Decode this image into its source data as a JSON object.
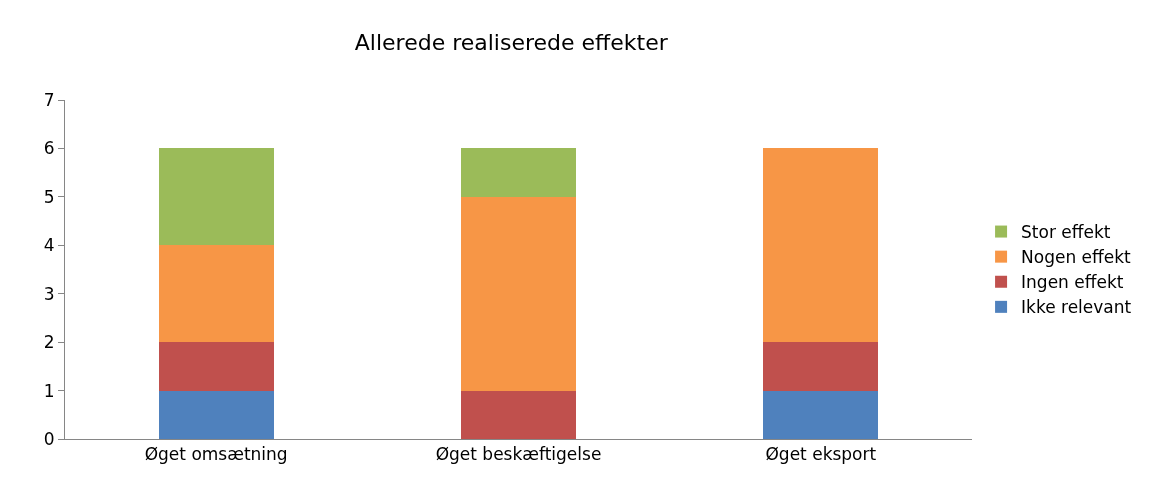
{
  "chart_data": {
    "type": "bar",
    "title": "Allerede realiserede effekter",
    "stacked": true,
    "categories": [
      "Øget omsætning",
      "Øget beskæftigelse",
      "Øget eksport"
    ],
    "series": [
      {
        "name": "Ikke relevant",
        "color": "#4f81bd",
        "values": [
          1,
          0,
          1
        ]
      },
      {
        "name": "Ingen effekt",
        "color": "#c0504d",
        "values": [
          1,
          1,
          1
        ]
      },
      {
        "name": "Nogen effekt",
        "color": "#f79646",
        "values": [
          2,
          4,
          4
        ]
      },
      {
        "name": "Stor effekt",
        "color": "#9bbb59",
        "values": [
          2,
          1,
          0
        ]
      }
    ],
    "ylim": [
      0,
      7
    ],
    "yticks": [
      0,
      1,
      2,
      3,
      4,
      5,
      6,
      7
    ],
    "legend": "right"
  }
}
